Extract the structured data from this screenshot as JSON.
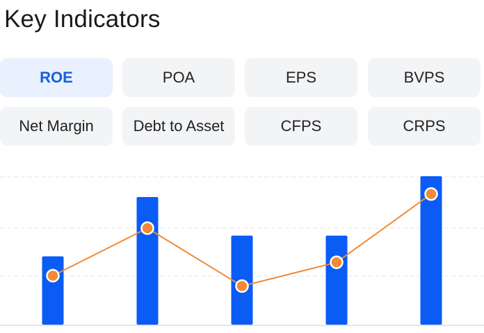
{
  "header": {
    "title": "Key Indicators"
  },
  "tabs": [
    {
      "label": "ROE",
      "active": true
    },
    {
      "label": "POA",
      "active": false
    },
    {
      "label": "EPS",
      "active": false
    },
    {
      "label": "BVPS",
      "active": false
    },
    {
      "label": "Net Margin",
      "active": false
    },
    {
      "label": "Debt to Asset",
      "active": false
    },
    {
      "label": "CFPS",
      "active": false
    },
    {
      "label": "CRPS",
      "active": false
    }
  ],
  "colors": {
    "accent": "#1a5fdb",
    "bar": "#0a5cf5",
    "line": "#f08a36",
    "tab_bg": "#f3f4f6",
    "tab_active_bg": "#e8f1fd"
  },
  "chart_data": {
    "type": "bar",
    "grid": true,
    "ylim": [
      0,
      100
    ],
    "categories": [
      "",
      "",
      "",
      "",
      ""
    ],
    "series": [
      {
        "kind": "bar",
        "values": [
          46,
          86,
          60,
          60,
          100
        ]
      },
      {
        "kind": "line",
        "values": [
          33,
          65,
          26,
          42,
          88
        ]
      }
    ]
  }
}
